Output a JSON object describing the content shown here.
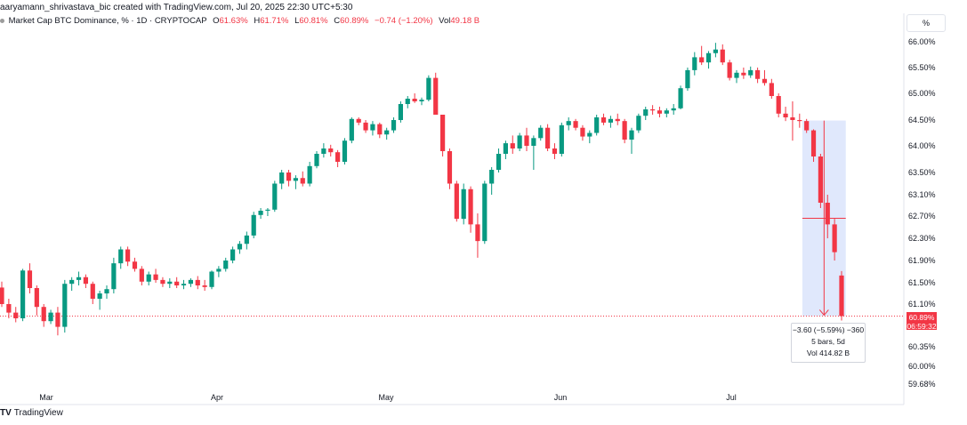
{
  "header": {
    "attribution": "aaryamann_shrivastava_bic created with TradingView.com, Jul 20, 2025 22:30 UTC+5:30"
  },
  "legend": {
    "symbol": "Market Cap BTC Dominance, % · 1D · CRYPTOCAP",
    "o_key": "O",
    "o_val": "61.63%",
    "h_key": "H",
    "h_val": "61.71%",
    "l_key": "L",
    "l_val": "60.81%",
    "c_key": "C",
    "c_val": "60.89%",
    "change": "−0.74 (−1.20%)",
    "vol_key": "Vol",
    "vol_val": "49.18 B"
  },
  "toolbar": {
    "scale_button": "%"
  },
  "price_tag": {
    "price": "60.89%",
    "countdown": "06:59:32"
  },
  "measure": {
    "change": "−3.60 (−5.59%) −360",
    "bars": "5 bars, 5d",
    "vol": "Vol 414.82 B"
  },
  "footer": {
    "logo": "TV",
    "brand": "TradingView"
  },
  "colors": {
    "up": "#089981",
    "down": "#f23645",
    "measure_fill": "#dbe4fb",
    "measure_line": "#f23645"
  },
  "chart_data": {
    "type": "candlestick",
    "title": "Market Cap BTC Dominance, % · 1D · CRYPTOCAP",
    "y_ticks": [
      "66.00%",
      "65.50%",
      "65.00%",
      "64.50%",
      "64.00%",
      "63.50%",
      "63.10%",
      "62.70%",
      "62.30%",
      "61.90%",
      "61.50%",
      "61.10%",
      "60.35%",
      "60.00%",
      "59.68%"
    ],
    "x_months": [
      "Mar",
      "Apr",
      "May",
      "Jun",
      "Jul"
    ],
    "current_price": 60.89,
    "measure_range": {
      "from": 64.49,
      "to": 60.89
    },
    "candles": [
      [
        61.41,
        61.52,
        61.05,
        61.1
      ],
      [
        61.1,
        61.2,
        60.85,
        60.95
      ],
      [
        60.95,
        61.05,
        60.78,
        60.85
      ],
      [
        60.85,
        61.75,
        60.8,
        61.72
      ],
      [
        61.72,
        61.85,
        61.3,
        61.4
      ],
      [
        61.4,
        61.45,
        60.9,
        61.05
      ],
      [
        61.05,
        61.1,
        60.7,
        60.8
      ],
      [
        60.8,
        61.0,
        60.75,
        60.95
      ],
      [
        60.95,
        61.05,
        60.55,
        60.7
      ],
      [
        60.7,
        61.55,
        60.6,
        61.48
      ],
      [
        61.48,
        61.6,
        61.35,
        61.55
      ],
      [
        61.55,
        61.7,
        61.45,
        61.6
      ],
      [
        61.6,
        61.65,
        61.4,
        61.48
      ],
      [
        61.48,
        61.52,
        61.1,
        61.2
      ],
      [
        61.2,
        61.35,
        61.0,
        61.3
      ],
      [
        61.3,
        61.45,
        61.2,
        61.38
      ],
      [
        61.38,
        61.95,
        61.3,
        61.85
      ],
      [
        61.85,
        62.15,
        61.75,
        62.1
      ],
      [
        62.1,
        62.15,
        61.8,
        61.88
      ],
      [
        61.88,
        61.95,
        61.7,
        61.75
      ],
      [
        61.75,
        61.8,
        61.45,
        61.52
      ],
      [
        61.52,
        61.7,
        61.45,
        61.65
      ],
      [
        61.65,
        61.75,
        61.5,
        61.55
      ],
      [
        61.55,
        61.6,
        61.42,
        61.48
      ],
      [
        61.48,
        61.58,
        61.4,
        61.52
      ],
      [
        61.52,
        61.6,
        61.4,
        61.45
      ],
      [
        61.45,
        61.55,
        61.38,
        61.48
      ],
      [
        61.48,
        61.58,
        61.42,
        61.55
      ],
      [
        61.55,
        61.62,
        61.38,
        61.45
      ],
      [
        61.45,
        61.55,
        61.35,
        61.42
      ],
      [
        61.42,
        61.72,
        61.38,
        61.7
      ],
      [
        61.7,
        61.8,
        61.6,
        61.75
      ],
      [
        61.75,
        61.95,
        61.7,
        61.9
      ],
      [
        61.9,
        62.15,
        61.85,
        62.1
      ],
      [
        62.1,
        62.25,
        62.02,
        62.2
      ],
      [
        62.2,
        62.42,
        62.1,
        62.35
      ],
      [
        62.35,
        62.78,
        62.3,
        62.72
      ],
      [
        62.72,
        62.85,
        62.65,
        62.8
      ],
      [
        62.8,
        62.85,
        62.7,
        62.82
      ],
      [
        62.82,
        63.35,
        62.78,
        63.3
      ],
      [
        63.3,
        63.55,
        63.2,
        63.5
      ],
      [
        63.5,
        63.55,
        63.25,
        63.35
      ],
      [
        63.35,
        63.45,
        63.2,
        63.4
      ],
      [
        63.4,
        63.52,
        63.25,
        63.3
      ],
      [
        63.3,
        63.7,
        63.25,
        63.62
      ],
      [
        63.62,
        63.9,
        63.58,
        63.85
      ],
      [
        63.85,
        64.05,
        63.78,
        63.95
      ],
      [
        63.95,
        64.02,
        63.8,
        63.88
      ],
      [
        63.88,
        63.92,
        63.6,
        63.7
      ],
      [
        63.7,
        64.15,
        63.65,
        64.1
      ],
      [
        64.1,
        64.55,
        64.05,
        64.52
      ],
      [
        64.52,
        64.55,
        64.4,
        64.45
      ],
      [
        64.45,
        64.5,
        64.25,
        64.3
      ],
      [
        64.3,
        64.48,
        64.2,
        64.42
      ],
      [
        64.42,
        64.45,
        64.15,
        64.22
      ],
      [
        64.22,
        64.35,
        64.12,
        64.3
      ],
      [
        64.3,
        64.55,
        64.25,
        64.5
      ],
      [
        64.5,
        64.85,
        64.45,
        64.8
      ],
      [
        64.8,
        64.95,
        64.72,
        64.9
      ],
      [
        64.9,
        65.0,
        64.82,
        64.85
      ],
      [
        64.85,
        64.92,
        64.78,
        64.88
      ],
      [
        64.88,
        65.35,
        64.85,
        65.3
      ],
      [
        65.3,
        65.4,
        64.6,
        64.6
      ],
      [
        64.6,
        64.6,
        63.8,
        63.9
      ],
      [
        63.9,
        63.95,
        63.2,
        63.3
      ],
      [
        63.3,
        63.35,
        62.6,
        62.65
      ],
      [
        62.65,
        63.3,
        62.55,
        63.2
      ],
      [
        63.2,
        63.25,
        62.4,
        62.55
      ],
      [
        62.55,
        62.75,
        61.95,
        62.25
      ],
      [
        62.25,
        63.35,
        62.2,
        63.3
      ],
      [
        63.3,
        63.6,
        63.1,
        63.55
      ],
      [
        63.55,
        63.95,
        63.5,
        63.85
      ],
      [
        63.85,
        64.1,
        63.75,
        64.05
      ],
      [
        64.05,
        64.2,
        63.85,
        63.95
      ],
      [
        63.95,
        64.25,
        63.9,
        64.2
      ],
      [
        64.2,
        64.35,
        63.9,
        64.0
      ],
      [
        64.0,
        64.2,
        63.55,
        64.15
      ],
      [
        64.15,
        64.4,
        64.1,
        64.35
      ],
      [
        64.35,
        64.42,
        63.9,
        63.95
      ],
      [
        63.95,
        64.05,
        63.75,
        63.85
      ],
      [
        63.85,
        64.45,
        63.8,
        64.4
      ],
      [
        64.4,
        64.55,
        64.3,
        64.48
      ],
      [
        64.48,
        64.52,
        64.3,
        64.35
      ],
      [
        64.35,
        64.4,
        64.1,
        64.18
      ],
      [
        64.18,
        64.3,
        64.05,
        64.25
      ],
      [
        64.25,
        64.6,
        64.2,
        64.55
      ],
      [
        64.55,
        64.62,
        64.4,
        64.45
      ],
      [
        64.45,
        64.58,
        64.35,
        64.52
      ],
      [
        64.52,
        64.62,
        64.4,
        64.48
      ],
      [
        64.48,
        64.52,
        64.05,
        64.12
      ],
      [
        64.12,
        64.35,
        63.85,
        64.3
      ],
      [
        64.3,
        64.62,
        64.25,
        64.58
      ],
      [
        64.58,
        64.75,
        64.5,
        64.7
      ],
      [
        64.7,
        64.78,
        64.6,
        64.68
      ],
      [
        64.68,
        64.75,
        64.55,
        64.62
      ],
      [
        64.62,
        64.72,
        64.55,
        64.68
      ],
      [
        64.68,
        64.8,
        64.6,
        64.72
      ],
      [
        64.72,
        65.15,
        64.7,
        65.1
      ],
      [
        65.1,
        65.5,
        65.05,
        65.45
      ],
      [
        65.45,
        65.8,
        65.35,
        65.7
      ],
      [
        65.7,
        65.92,
        65.55,
        65.6
      ],
      [
        65.6,
        65.82,
        65.48,
        65.78
      ],
      [
        65.78,
        65.98,
        65.7,
        65.85
      ],
      [
        65.85,
        65.95,
        65.55,
        65.6
      ],
      [
        65.6,
        65.65,
        65.25,
        65.3
      ],
      [
        65.3,
        65.45,
        65.2,
        65.4
      ],
      [
        65.4,
        65.5,
        65.28,
        65.35
      ],
      [
        65.35,
        65.52,
        65.3,
        65.45
      ],
      [
        65.45,
        65.5,
        65.2,
        65.28
      ],
      [
        65.28,
        65.45,
        65.15,
        65.2
      ],
      [
        65.2,
        65.28,
        64.9,
        64.95
      ],
      [
        64.95,
        65.0,
        64.55,
        64.62
      ],
      [
        64.62,
        64.75,
        64.48,
        64.55
      ],
      [
        64.55,
        64.85,
        64.1,
        64.5
      ],
      [
        64.5,
        64.62,
        64.35,
        64.48
      ],
      [
        64.48,
        64.52,
        64.25,
        64.3
      ],
      [
        64.3,
        64.32,
        63.7,
        63.8
      ],
      [
        63.8,
        63.85,
        62.85,
        62.95
      ],
      [
        62.95,
        63.1,
        62.3,
        62.55
      ],
      [
        62.55,
        62.65,
        61.9,
        62.05
      ],
      [
        61.63,
        61.71,
        60.81,
        60.89
      ]
    ]
  }
}
